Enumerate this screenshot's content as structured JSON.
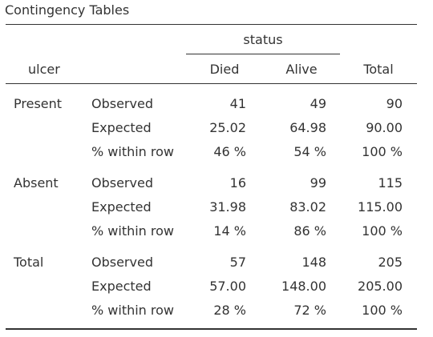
{
  "title": "Contingency Tables",
  "spanner": "status",
  "headers": {
    "row_var": "ulcer",
    "col1": "Died",
    "col2": "Alive",
    "total": "Total"
  },
  "groups": [
    {
      "label": "Present",
      "rows": [
        {
          "stat": "Observed",
          "died": "41",
          "alive": "49",
          "total": "90"
        },
        {
          "stat": "Expected",
          "died": "25.02",
          "alive": "64.98",
          "total": "90.00"
        },
        {
          "stat": "% within row",
          "died": "46 %",
          "alive": "54 %",
          "total": "100 %"
        }
      ]
    },
    {
      "label": "Absent",
      "rows": [
        {
          "stat": "Observed",
          "died": "16",
          "alive": "99",
          "total": "115"
        },
        {
          "stat": "Expected",
          "died": "31.98",
          "alive": "83.02",
          "total": "115.00"
        },
        {
          "stat": "% within row",
          "died": "14 %",
          "alive": "86 %",
          "total": "100 %"
        }
      ]
    },
    {
      "label": "Total",
      "rows": [
        {
          "stat": "Observed",
          "died": "57",
          "alive": "148",
          "total": "205"
        },
        {
          "stat": "Expected",
          "died": "57.00",
          "alive": "148.00",
          "total": "205.00"
        },
        {
          "stat": "% within row",
          "died": "28 %",
          "alive": "72 %",
          "total": "100 %"
        }
      ]
    }
  ]
}
